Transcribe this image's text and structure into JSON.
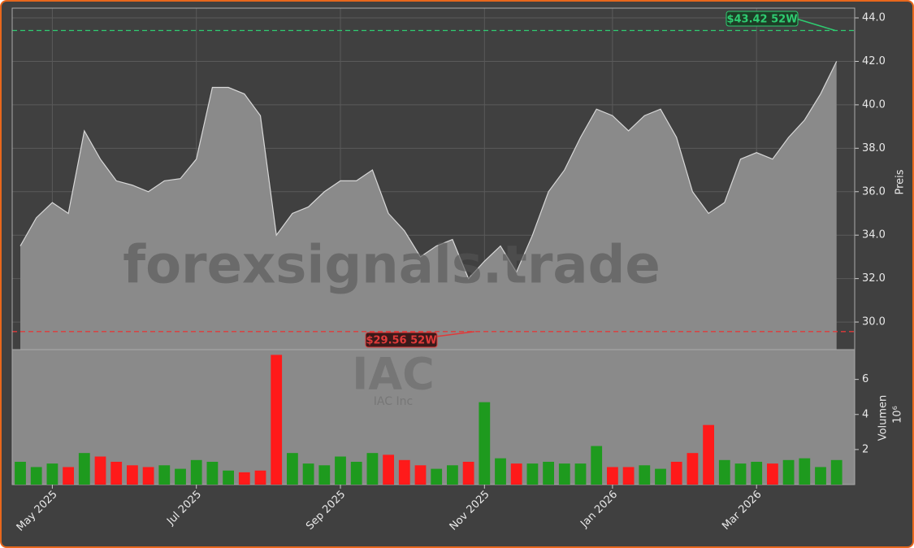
{
  "chart_data": [
    {
      "type": "area",
      "name": "IAC",
      "subtitle": "IAC Inc",
      "watermark": "forexsignals.trade",
      "y_label": "Preis",
      "categories": [
        null,
        null,
        "May 2025",
        null,
        null,
        null,
        null,
        null,
        null,
        null,
        null,
        "Jul 2025",
        null,
        null,
        null,
        null,
        null,
        null,
        null,
        null,
        "Sep 2025",
        null,
        null,
        null,
        null,
        null,
        null,
        null,
        null,
        "Nov 2025",
        null,
        null,
        null,
        null,
        null,
        null,
        null,
        "Jan 2026",
        null,
        null,
        null,
        null,
        null,
        null,
        null,
        null,
        "Mar 2026",
        null,
        null,
        null,
        null,
        null
      ],
      "values": [
        33.5,
        34.8,
        35.5,
        35.0,
        38.8,
        37.5,
        36.5,
        36.3,
        36.0,
        36.5,
        36.6,
        37.5,
        40.8,
        40.8,
        40.5,
        39.5,
        34.0,
        35.0,
        35.3,
        36.0,
        36.5,
        36.5,
        37.0,
        35.0,
        34.2,
        33.0,
        33.5,
        33.8,
        32.0,
        32.8,
        33.5,
        32.3,
        34.0,
        36.0,
        37.0,
        38.5,
        39.8,
        39.5,
        38.8,
        39.5,
        39.8,
        38.5,
        36.0,
        35.0,
        35.5,
        37.5,
        37.8,
        37.5,
        38.5,
        39.3,
        40.5,
        42.0
      ],
      "color": "#8a8a8a",
      "line_color": "#d8d8d8",
      "ylim": [
        28.73,
        44.45
      ],
      "yticks": [
        {
          "value": 30,
          "label": "30.0"
        },
        {
          "value": 32,
          "label": "32.0"
        },
        {
          "value": 34,
          "label": "34.0"
        },
        {
          "value": 36,
          "label": "36.0"
        },
        {
          "value": 38,
          "label": "38.0"
        },
        {
          "value": 40,
          "label": "40.0"
        },
        {
          "value": 42,
          "label": "42.0"
        },
        {
          "value": 44,
          "label": "44.0"
        }
      ],
      "grid": true,
      "annotations": [
        {
          "value": 43.42,
          "label": "$43.42 52W",
          "color": "#2ecc71"
        },
        {
          "value": 29.56,
          "label": "$29.56 52W",
          "color": "#e03a3a"
        }
      ]
    },
    {
      "type": "bar",
      "y_label": "Volumen",
      "y_multiplier": "10⁶",
      "values": [
        1.3,
        1.0,
        1.2,
        1.0,
        1.8,
        1.6,
        1.3,
        1.1,
        1.0,
        1.1,
        0.9,
        1.4,
        1.3,
        0.8,
        0.7,
        0.8,
        7.4,
        1.8,
        1.2,
        1.1,
        1.6,
        1.3,
        1.8,
        1.7,
        1.4,
        1.1,
        0.9,
        1.1,
        1.3,
        4.7,
        1.5,
        1.2,
        1.2,
        1.3,
        1.2,
        1.2,
        2.2,
        1.0,
        1.0,
        1.1,
        0.9,
        1.3,
        1.8,
        3.4,
        1.4,
        1.2,
        1.3,
        1.2,
        1.4,
        1.5,
        1.0,
        1.4
      ],
      "up_color": "#1e9a1e",
      "down_color": "#ff1a1a",
      "ylim": [
        0,
        7.7
      ],
      "yticks": [
        2,
        4,
        6
      ]
    }
  ]
}
